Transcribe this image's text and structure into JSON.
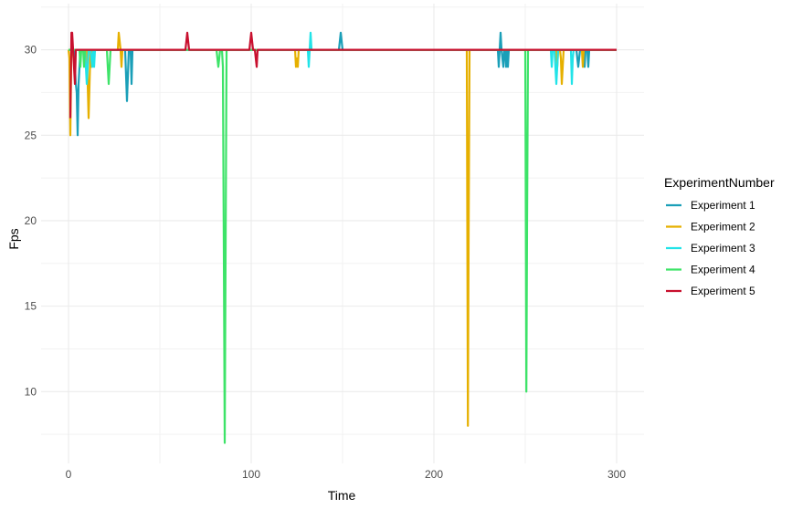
{
  "chart_data": {
    "type": "line",
    "title": "",
    "xlabel": "Time",
    "ylabel": "Fps",
    "xlim": [
      -15,
      315
    ],
    "ylim": [
      5.8,
      32.7
    ],
    "x_ticks": [
      0,
      100,
      200,
      300
    ],
    "x_minor_ticks": [
      50,
      150,
      250
    ],
    "y_ticks": [
      10,
      15,
      20,
      25,
      30
    ],
    "y_minor_ticks": [
      7.5,
      12.5,
      17.5,
      22.5,
      27.5,
      32.5
    ],
    "grid": true,
    "legend": {
      "title": "ExperimentNumber",
      "position": "right"
    },
    "series": [
      {
        "name": "Experiment 1",
        "color": "#1a9fb8",
        "points": [
          [
            0,
            30
          ],
          [
            3,
            30
          ],
          [
            4,
            28
          ],
          [
            4.5,
            27.5
          ],
          [
            5,
            25
          ],
          [
            5.5,
            28
          ],
          [
            6,
            29
          ],
          [
            6.5,
            30
          ],
          [
            31,
            30
          ],
          [
            31.5,
            28.5
          ],
          [
            32,
            27
          ],
          [
            32.5,
            28.5
          ],
          [
            33,
            30
          ],
          [
            34,
            30
          ],
          [
            34.5,
            28
          ],
          [
            35,
            30
          ],
          [
            148,
            30
          ],
          [
            148.5,
            30.5
          ],
          [
            149,
            31
          ],
          [
            149.5,
            30.5
          ],
          [
            150,
            30
          ],
          [
            235,
            30
          ],
          [
            235.5,
            29
          ],
          [
            236,
            30
          ],
          [
            236.5,
            31
          ],
          [
            237,
            30
          ],
          [
            237.5,
            29.5
          ],
          [
            238,
            29
          ],
          [
            238.5,
            30
          ],
          [
            239,
            30
          ],
          [
            239.5,
            29
          ],
          [
            240,
            30
          ],
          [
            240.5,
            29
          ],
          [
            241,
            30
          ],
          [
            278,
            30
          ],
          [
            279,
            29
          ],
          [
            280,
            30
          ],
          [
            282,
            30
          ],
          [
            282.5,
            29
          ],
          [
            283,
            30
          ],
          [
            284,
            30
          ],
          [
            284.5,
            29
          ],
          [
            285,
            30
          ],
          [
            300,
            30
          ]
        ]
      },
      {
        "name": "Experiment 2",
        "color": "#e6b000",
        "points": [
          [
            0,
            30
          ],
          [
            0.5,
            29.5
          ],
          [
            1,
            25
          ],
          [
            1.5,
            29.5
          ],
          [
            2,
            30
          ],
          [
            10,
            30
          ],
          [
            10.5,
            28
          ],
          [
            11,
            26
          ],
          [
            11.5,
            28
          ],
          [
            12,
            30
          ],
          [
            12.5,
            29
          ],
          [
            13,
            30
          ],
          [
            27,
            30
          ],
          [
            27.5,
            31
          ],
          [
            28,
            30.5
          ],
          [
            28.5,
            30
          ],
          [
            29,
            29
          ],
          [
            29.5,
            30
          ],
          [
            124,
            30
          ],
          [
            124.5,
            29
          ],
          [
            125,
            29.5
          ],
          [
            125.5,
            29
          ],
          [
            126,
            30
          ],
          [
            218,
            30
          ],
          [
            218.3,
            19
          ],
          [
            218.6,
            8
          ],
          [
            219,
            19
          ],
          [
            219.5,
            30
          ],
          [
            267,
            30
          ],
          [
            267.5,
            29
          ],
          [
            268,
            30
          ],
          [
            269,
            30
          ],
          [
            269.5,
            29.5
          ],
          [
            270,
            28
          ],
          [
            270.5,
            29
          ],
          [
            271,
            30
          ],
          [
            281,
            30
          ],
          [
            281.5,
            29
          ],
          [
            282,
            30
          ],
          [
            300,
            30
          ]
        ]
      },
      {
        "name": "Experiment 3",
        "color": "#21e3e8",
        "points": [
          [
            0,
            30
          ],
          [
            9,
            30
          ],
          [
            9.5,
            29
          ],
          [
            10,
            28
          ],
          [
            10.5,
            29
          ],
          [
            11,
            30
          ],
          [
            12,
            30
          ],
          [
            12.5,
            29.5
          ],
          [
            13,
            29
          ],
          [
            13.5,
            30
          ],
          [
            14,
            29
          ],
          [
            14.5,
            30
          ],
          [
            131,
            30
          ],
          [
            131.5,
            29
          ],
          [
            132,
            30
          ],
          [
            132.5,
            31
          ],
          [
            133,
            30
          ],
          [
            264,
            30
          ],
          [
            264.5,
            29
          ],
          [
            265,
            30
          ],
          [
            266,
            30
          ],
          [
            266.5,
            29
          ],
          [
            267,
            28
          ],
          [
            267.5,
            29
          ],
          [
            268,
            30
          ],
          [
            275,
            30
          ],
          [
            275.5,
            28
          ],
          [
            276,
            29.5
          ],
          [
            276.5,
            30
          ],
          [
            300,
            30
          ]
        ]
      },
      {
        "name": "Experiment 4",
        "color": "#3de368",
        "points": [
          [
            0,
            30
          ],
          [
            6,
            30
          ],
          [
            6.5,
            29
          ],
          [
            7,
            30
          ],
          [
            8,
            30
          ],
          [
            8.5,
            29
          ],
          [
            9,
            30
          ],
          [
            21,
            30
          ],
          [
            21.5,
            29
          ],
          [
            22,
            28
          ],
          [
            22.5,
            29
          ],
          [
            23,
            30
          ],
          [
            81,
            30
          ],
          [
            81.5,
            29.5
          ],
          [
            82,
            29
          ],
          [
            82.5,
            29.5
          ],
          [
            83,
            30
          ],
          [
            84,
            30
          ],
          [
            84.5,
            29
          ],
          [
            85,
            18.5
          ],
          [
            85.5,
            7
          ],
          [
            86,
            18.5
          ],
          [
            86.5,
            30
          ],
          [
            250,
            30
          ],
          [
            250.3,
            20
          ],
          [
            250.6,
            10
          ],
          [
            251,
            20
          ],
          [
            251.5,
            30
          ],
          [
            300,
            30
          ]
        ]
      },
      {
        "name": "Experiment 5",
        "color": "#c8102e",
        "points": [
          [
            1,
            26
          ],
          [
            1.3,
            28.5
          ],
          [
            1.6,
            31
          ],
          [
            2,
            31
          ],
          [
            2.5,
            30
          ],
          [
            3,
            29
          ],
          [
            3.5,
            28
          ],
          [
            4,
            30
          ],
          [
            64,
            30
          ],
          [
            64.5,
            30.5
          ],
          [
            65,
            31
          ],
          [
            65.5,
            30.5
          ],
          [
            66,
            30
          ],
          [
            99,
            30
          ],
          [
            99.5,
            30.5
          ],
          [
            100,
            31
          ],
          [
            100.5,
            30.5
          ],
          [
            101,
            30
          ],
          [
            102,
            30
          ],
          [
            102.5,
            29.5
          ],
          [
            103,
            29
          ],
          [
            103.5,
            30
          ],
          [
            300,
            30
          ]
        ]
      }
    ]
  }
}
